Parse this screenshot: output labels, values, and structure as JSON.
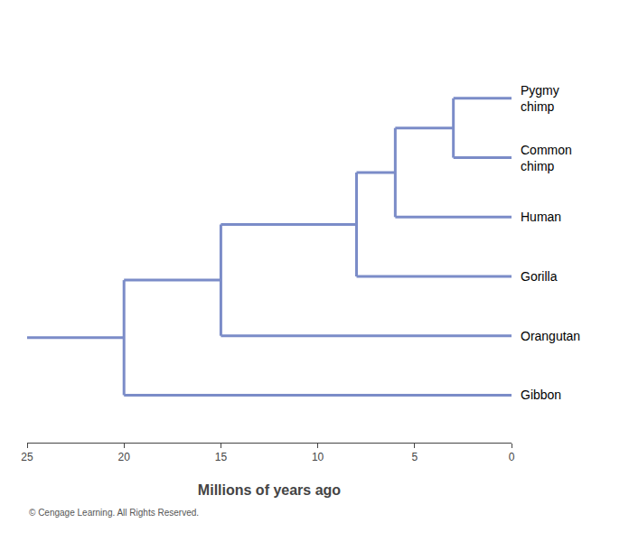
{
  "chart_data": {
    "type": "dendrogram",
    "xlabel": "Millions of years ago",
    "categories": [
      "Pygmy\nchimp",
      "Common\nchimp",
      "Human",
      "Gorilla",
      "Orangutan",
      "Gibbon"
    ],
    "values": [
      3,
      3,
      6,
      8,
      15,
      20
    ],
    "color": "#7b8cc8",
    "xlim": [
      25,
      0
    ],
    "xticks": [
      25,
      20,
      15,
      10,
      5,
      0
    ],
    "grid": false,
    "annotations": [
      "© Cengage Learning. All Rights Reserved."
    ]
  }
}
